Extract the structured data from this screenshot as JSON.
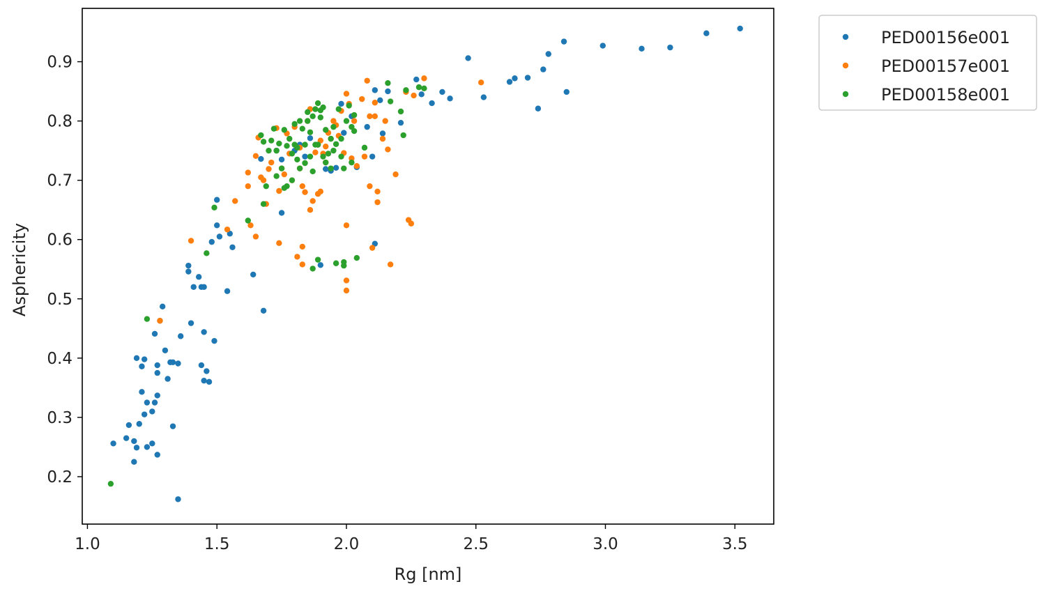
{
  "chart_data": {
    "type": "scatter",
    "title": "",
    "xlabel": "Rg [nm]",
    "ylabel": "Asphericity",
    "xlim": [
      0.98,
      3.65
    ],
    "ylim": [
      0.12,
      0.99
    ],
    "xticks": [
      1.0,
      1.5,
      2.0,
      2.5,
      3.0,
      3.5
    ],
    "xtick_labels": [
      "1.0",
      "1.5",
      "2.0",
      "2.5",
      "3.0",
      "3.5"
    ],
    "yticks": [
      0.2,
      0.3,
      0.4,
      0.5,
      0.6,
      0.7,
      0.8,
      0.9
    ],
    "ytick_labels": [
      "0.2",
      "0.3",
      "0.4",
      "0.5",
      "0.6",
      "0.7",
      "0.8",
      "0.9"
    ],
    "grid": false,
    "legend_position": "outside top-right",
    "series": [
      {
        "name": "PED00156e001",
        "color": "#1f77b4",
        "points": [
          [
            1.1,
            0.256
          ],
          [
            1.15,
            0.265
          ],
          [
            1.16,
            0.287
          ],
          [
            1.18,
            0.26
          ],
          [
            1.18,
            0.225
          ],
          [
            1.19,
            0.249
          ],
          [
            1.19,
            0.4
          ],
          [
            1.2,
            0.289
          ],
          [
            1.21,
            0.386
          ],
          [
            1.21,
            0.343
          ],
          [
            1.22,
            0.398
          ],
          [
            1.22,
            0.305
          ],
          [
            1.23,
            0.325
          ],
          [
            1.23,
            0.25
          ],
          [
            1.25,
            0.256
          ],
          [
            1.25,
            0.31
          ],
          [
            1.26,
            0.325
          ],
          [
            1.26,
            0.441
          ],
          [
            1.27,
            0.337
          ],
          [
            1.27,
            0.388
          ],
          [
            1.27,
            0.375
          ],
          [
            1.27,
            0.237
          ],
          [
            1.28,
            0.463
          ],
          [
            1.29,
            0.487
          ],
          [
            1.3,
            0.413
          ],
          [
            1.31,
            0.365
          ],
          [
            1.32,
            0.393
          ],
          [
            1.33,
            0.285
          ],
          [
            1.33,
            0.393
          ],
          [
            1.35,
            0.391
          ],
          [
            1.35,
            0.162
          ],
          [
            1.36,
            0.437
          ],
          [
            1.39,
            0.556
          ],
          [
            1.39,
            0.546
          ],
          [
            1.4,
            0.459
          ],
          [
            1.41,
            0.52
          ],
          [
            1.43,
            0.537
          ],
          [
            1.44,
            0.52
          ],
          [
            1.44,
            0.388
          ],
          [
            1.45,
            0.52
          ],
          [
            1.45,
            0.362
          ],
          [
            1.45,
            0.444
          ],
          [
            1.46,
            0.378
          ],
          [
            1.47,
            0.36
          ],
          [
            1.48,
            0.596
          ],
          [
            1.49,
            0.429
          ],
          [
            1.5,
            0.667
          ],
          [
            1.5,
            0.624
          ],
          [
            1.51,
            0.605
          ],
          [
            1.54,
            0.513
          ],
          [
            1.55,
            0.61
          ],
          [
            1.56,
            0.587
          ],
          [
            1.64,
            0.541
          ],
          [
            1.67,
            0.736
          ],
          [
            1.68,
            0.48
          ],
          [
            1.73,
            0.75
          ],
          [
            1.75,
            0.735
          ],
          [
            1.75,
            0.645
          ],
          [
            1.8,
            0.75
          ],
          [
            1.82,
            0.76
          ],
          [
            1.84,
            0.74
          ],
          [
            1.86,
            0.771
          ],
          [
            1.89,
            0.76
          ],
          [
            1.9,
            0.557
          ],
          [
            1.92,
            0.719
          ],
          [
            1.94,
            0.716
          ],
          [
            1.96,
            0.721
          ],
          [
            1.98,
            0.829
          ],
          [
            1.99,
            0.78
          ],
          [
            2.02,
            0.808
          ],
          [
            2.04,
            0.722
          ],
          [
            2.08,
            0.79
          ],
          [
            2.1,
            0.74
          ],
          [
            2.11,
            0.852
          ],
          [
            2.11,
            0.593
          ],
          [
            2.13,
            0.835
          ],
          [
            2.14,
            0.779
          ],
          [
            2.16,
            0.85
          ],
          [
            2.21,
            0.797
          ],
          [
            2.27,
            0.87
          ],
          [
            2.29,
            0.845
          ],
          [
            2.33,
            0.83
          ],
          [
            2.37,
            0.849
          ],
          [
            2.4,
            0.838
          ],
          [
            2.47,
            0.906
          ],
          [
            2.53,
            0.84
          ],
          [
            2.63,
            0.866
          ],
          [
            2.65,
            0.872
          ],
          [
            2.7,
            0.873
          ],
          [
            2.74,
            0.821
          ],
          [
            2.76,
            0.887
          ],
          [
            2.78,
            0.913
          ],
          [
            2.84,
            0.934
          ],
          [
            2.85,
            0.849
          ],
          [
            2.99,
            0.927
          ],
          [
            3.14,
            0.922
          ],
          [
            3.25,
            0.924
          ],
          [
            3.39,
            0.948
          ],
          [
            3.52,
            0.956
          ]
        ]
      },
      {
        "name": "PED00157e001",
        "color": "#ff7f0e",
        "points": [
          [
            1.28,
            0.463
          ],
          [
            1.4,
            0.598
          ],
          [
            1.54,
            0.617
          ],
          [
            1.57,
            0.665
          ],
          [
            1.62,
            0.713
          ],
          [
            1.62,
            0.69
          ],
          [
            1.63,
            0.624
          ],
          [
            1.65,
            0.605
          ],
          [
            1.65,
            0.741
          ],
          [
            1.66,
            0.772
          ],
          [
            1.67,
            0.705
          ],
          [
            1.68,
            0.7
          ],
          [
            1.69,
            0.66
          ],
          [
            1.7,
            0.719
          ],
          [
            1.71,
            0.73
          ],
          [
            1.73,
            0.788
          ],
          [
            1.74,
            0.682
          ],
          [
            1.74,
            0.594
          ],
          [
            1.75,
            0.72
          ],
          [
            1.76,
            0.71
          ],
          [
            1.77,
            0.779
          ],
          [
            1.78,
            0.745
          ],
          [
            1.79,
            0.7
          ],
          [
            1.8,
            0.79
          ],
          [
            1.81,
            0.571
          ],
          [
            1.82,
            0.72
          ],
          [
            1.82,
            0.755
          ],
          [
            1.83,
            0.69
          ],
          [
            1.83,
            0.588
          ],
          [
            1.83,
            0.558
          ],
          [
            1.84,
            0.68
          ],
          [
            1.85,
            0.8
          ],
          [
            1.86,
            0.65
          ],
          [
            1.86,
            0.82
          ],
          [
            1.87,
            0.665
          ],
          [
            1.88,
            0.747
          ],
          [
            1.89,
            0.677
          ],
          [
            1.89,
            0.76
          ],
          [
            1.9,
            0.681
          ],
          [
            1.9,
            0.767
          ],
          [
            1.91,
            0.745
          ],
          [
            1.92,
            0.757
          ],
          [
            1.92,
            0.73
          ],
          [
            1.93,
            0.78
          ],
          [
            1.94,
            0.77
          ],
          [
            1.95,
            0.8
          ],
          [
            1.96,
            0.793
          ],
          [
            1.97,
            0.775
          ],
          [
            1.98,
            0.817
          ],
          [
            1.99,
            0.746
          ],
          [
            2.0,
            0.846
          ],
          [
            2.0,
            0.624
          ],
          [
            2.0,
            0.531
          ],
          [
            2.0,
            0.514
          ],
          [
            2.01,
            0.829
          ],
          [
            2.02,
            0.737
          ],
          [
            2.03,
            0.8
          ],
          [
            2.04,
            0.724
          ],
          [
            2.06,
            0.837
          ],
          [
            2.07,
            0.74
          ],
          [
            2.08,
            0.868
          ],
          [
            2.09,
            0.69
          ],
          [
            2.09,
            0.808
          ],
          [
            2.1,
            0.586
          ],
          [
            2.11,
            0.808
          ],
          [
            2.11,
            0.831
          ],
          [
            2.12,
            0.681
          ],
          [
            2.12,
            0.663
          ],
          [
            2.14,
            0.77
          ],
          [
            2.15,
            0.8
          ],
          [
            2.16,
            0.752
          ],
          [
            2.17,
            0.558
          ],
          [
            2.19,
            0.71
          ],
          [
            2.23,
            0.849
          ],
          [
            2.24,
            0.633
          ],
          [
            2.25,
            0.627
          ],
          [
            2.26,
            0.843
          ],
          [
            2.3,
            0.872
          ],
          [
            2.52,
            0.865
          ]
        ]
      },
      {
        "name": "PED00158e001",
        "color": "#2ca02c",
        "points": [
          [
            1.09,
            0.188
          ],
          [
            1.23,
            0.466
          ],
          [
            1.46,
            0.577
          ],
          [
            1.49,
            0.654
          ],
          [
            1.62,
            0.632
          ],
          [
            1.67,
            0.776
          ],
          [
            1.68,
            0.765
          ],
          [
            1.68,
            0.66
          ],
          [
            1.69,
            0.69
          ],
          [
            1.7,
            0.75
          ],
          [
            1.71,
            0.767
          ],
          [
            1.72,
            0.787
          ],
          [
            1.73,
            0.707
          ],
          [
            1.73,
            0.75
          ],
          [
            1.74,
            0.762
          ],
          [
            1.75,
            0.72
          ],
          [
            1.76,
            0.785
          ],
          [
            1.76,
            0.687
          ],
          [
            1.77,
            0.758
          ],
          [
            1.77,
            0.69
          ],
          [
            1.78,
            0.77
          ],
          [
            1.79,
            0.745
          ],
          [
            1.79,
            0.7
          ],
          [
            1.8,
            0.795
          ],
          [
            1.8,
            0.76
          ],
          [
            1.81,
            0.755
          ],
          [
            1.81,
            0.735
          ],
          [
            1.82,
            0.72
          ],
          [
            1.82,
            0.8
          ],
          [
            1.83,
            0.787
          ],
          [
            1.84,
            0.76
          ],
          [
            1.84,
            0.729
          ],
          [
            1.85,
            0.8
          ],
          [
            1.85,
            0.815
          ],
          [
            1.86,
            0.781
          ],
          [
            1.86,
            0.74
          ],
          [
            1.87,
            0.808
          ],
          [
            1.87,
            0.715
          ],
          [
            1.87,
            0.551
          ],
          [
            1.88,
            0.76
          ],
          [
            1.88,
            0.82
          ],
          [
            1.89,
            0.83
          ],
          [
            1.89,
            0.566
          ],
          [
            1.89,
            0.76
          ],
          [
            1.9,
            0.806
          ],
          [
            1.9,
            0.818
          ],
          [
            1.91,
            0.74
          ],
          [
            1.91,
            0.823
          ],
          [
            1.92,
            0.785
          ],
          [
            1.92,
            0.73
          ],
          [
            1.93,
            0.745
          ],
          [
            1.94,
            0.77
          ],
          [
            1.94,
            0.72
          ],
          [
            1.95,
            0.79
          ],
          [
            1.95,
            0.75
          ],
          [
            1.96,
            0.761
          ],
          [
            1.96,
            0.56
          ],
          [
            1.97,
            0.82
          ],
          [
            1.98,
            0.77
          ],
          [
            1.98,
            0.74
          ],
          [
            1.99,
            0.72
          ],
          [
            1.99,
            0.556
          ],
          [
            1.99,
            0.562
          ],
          [
            2.0,
            0.8
          ],
          [
            2.01,
            0.826
          ],
          [
            2.02,
            0.79
          ],
          [
            2.02,
            0.73
          ],
          [
            2.03,
            0.783
          ],
          [
            2.03,
            0.81
          ],
          [
            2.04,
            0.569
          ],
          [
            2.07,
            0.755
          ],
          [
            2.16,
            0.864
          ],
          [
            2.17,
            0.833
          ],
          [
            2.21,
            0.816
          ],
          [
            2.22,
            0.776
          ],
          [
            2.23,
            0.852
          ],
          [
            2.28,
            0.857
          ],
          [
            2.3,
            0.855
          ]
        ]
      }
    ]
  }
}
